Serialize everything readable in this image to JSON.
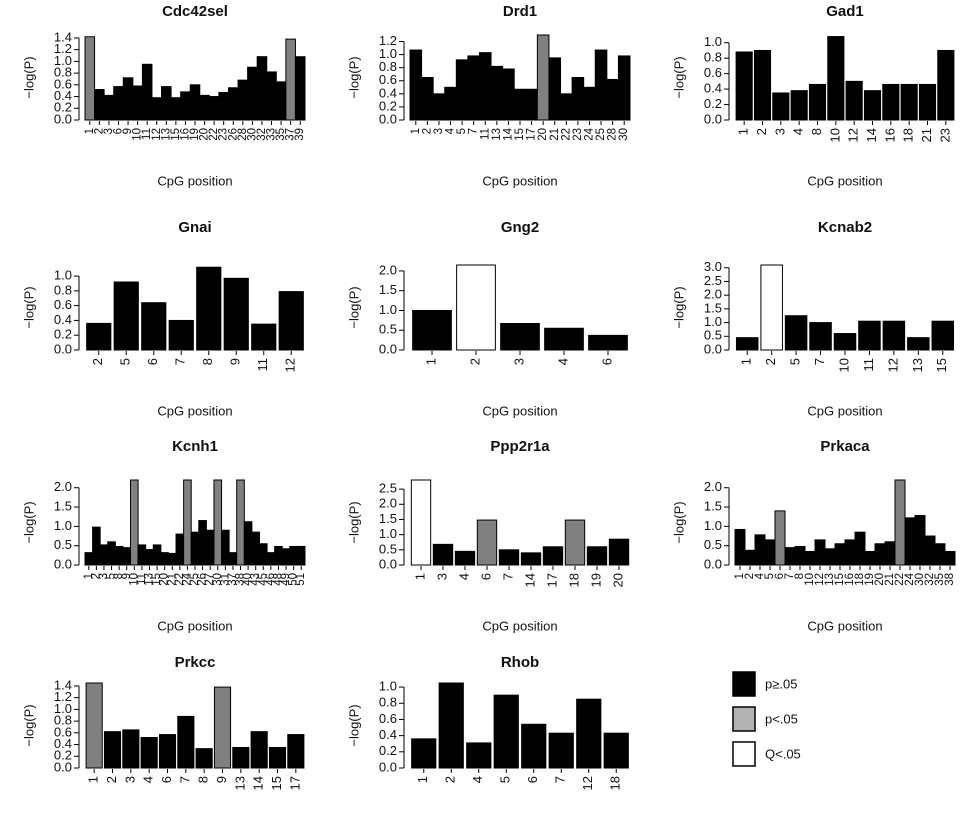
{
  "chart_data": [
    {
      "type": "bar",
      "title": "Cdc42sel",
      "y_label": "−log(P)",
      "x_label": "CpG position",
      "categories": [
        "1",
        "2",
        "3",
        "6",
        "9",
        "10",
        "11",
        "12",
        "13",
        "15",
        "16",
        "19",
        "20",
        "22",
        "23",
        "26",
        "28",
        "30",
        "32",
        "33",
        "35",
        "37",
        "39"
      ],
      "values": [
        1.42,
        0.52,
        0.42,
        0.57,
        0.72,
        0.58,
        0.95,
        0.38,
        0.57,
        0.38,
        0.48,
        0.6,
        0.42,
        0.4,
        0.47,
        0.55,
        0.68,
        0.9,
        1.08,
        0.82,
        0.65,
        1.38,
        1.08
      ],
      "colors": [
        "#808080",
        "#000000",
        "#000000",
        "#000000",
        "#000000",
        "#000000",
        "#000000",
        "#000000",
        "#000000",
        "#000000",
        "#000000",
        "#000000",
        "#000000",
        "#000000",
        "#000000",
        "#000000",
        "#000000",
        "#000000",
        "#000000",
        "#000000",
        "#000000",
        "#808080",
        "#000000"
      ],
      "ylim": [
        0,
        1.45
      ],
      "yticks": [
        {
          "value": 0,
          "label": "0.0"
        },
        0.2,
        0.4,
        0.6,
        0.8,
        {
          "value": 1,
          "label": "1.0"
        },
        1.2,
        1.4
      ]
    },
    {
      "type": "bar",
      "title": "Drd1",
      "y_label": "−log(P)",
      "x_label": "CpG position",
      "categories": [
        "1",
        "2",
        "3",
        "4",
        "5",
        "7",
        "11",
        "13",
        "14",
        "15",
        "17",
        "20",
        "21",
        "22",
        "23",
        "24",
        "25",
        "28",
        "30"
      ],
      "values": [
        1.07,
        0.65,
        0.4,
        0.5,
        0.92,
        0.98,
        1.03,
        0.82,
        0.78,
        0.47,
        0.47,
        1.3,
        0.95,
        0.4,
        0.65,
        0.5,
        1.07,
        0.62,
        0.98
      ],
      "colors": [
        "#000000",
        "#000000",
        "#000000",
        "#000000",
        "#000000",
        "#000000",
        "#000000",
        "#000000",
        "#000000",
        "#000000",
        "#000000",
        "#808080",
        "#000000",
        "#000000",
        "#000000",
        "#000000",
        "#000000",
        "#000000",
        "#000000"
      ],
      "ylim": [
        0,
        1.3
      ],
      "yticks": [
        {
          "value": 0,
          "label": "0.0"
        },
        0.2,
        0.4,
        0.6,
        0.8,
        {
          "value": 1,
          "label": "1.0"
        },
        1.2
      ]
    },
    {
      "type": "bar",
      "title": "Gad1",
      "y_label": "−log(P)",
      "x_label": "CpG position",
      "categories": [
        "1",
        "2",
        "3",
        "4",
        "8",
        "10",
        "12",
        "14",
        "16",
        "18",
        "21",
        "23"
      ],
      "values": [
        0.88,
        0.9,
        0.35,
        0.38,
        0.46,
        1.08,
        0.5,
        0.38,
        0.46,
        0.46,
        0.46,
        0.9
      ],
      "colors": [
        "#000000",
        "#000000",
        "#000000",
        "#000000",
        "#000000",
        "#000000",
        "#000000",
        "#000000",
        "#000000",
        "#000000",
        "#000000",
        "#000000"
      ],
      "ylim": [
        0,
        1.1
      ],
      "yticks": [
        {
          "value": 0,
          "label": "0.0"
        },
        0.2,
        0.4,
        0.6,
        0.8,
        {
          "value": 1,
          "label": "1.0"
        }
      ]
    },
    {
      "type": "bar",
      "title": "Gnai",
      "y_label": "−log(P)",
      "x_label": "CpG position",
      "categories": [
        "2",
        "5",
        "6",
        "7",
        "8",
        "9",
        "11",
        "12"
      ],
      "values": [
        0.36,
        0.92,
        0.64,
        0.4,
        1.12,
        0.97,
        0.35,
        0.79
      ],
      "colors": [
        "#000000",
        "#000000",
        "#000000",
        "#000000",
        "#000000",
        "#000000",
        "#000000",
        "#000000"
      ],
      "ylim": [
        0,
        1.15
      ],
      "yticks": [
        {
          "value": 0,
          "label": "0.0"
        },
        0.2,
        0.4,
        0.6,
        0.8,
        {
          "value": 1,
          "label": "1.0"
        }
      ]
    },
    {
      "type": "bar",
      "title": "Gng2",
      "y_label": "−log(P)",
      "x_label": "CpG position",
      "categories": [
        "1",
        "2",
        "3",
        "4",
        "6"
      ],
      "values": [
        1.0,
        2.15,
        0.67,
        0.55,
        0.37
      ],
      "colors": [
        "#000000",
        "#ffffff",
        "#000000",
        "#000000",
        "#000000"
      ],
      "ylim": [
        0,
        2.15
      ],
      "yticks": [
        {
          "value": 0,
          "label": "0.0"
        },
        0.5,
        {
          "value": 1,
          "label": "1.0"
        },
        1.5,
        {
          "value": 2,
          "label": "2.0"
        }
      ]
    },
    {
      "type": "bar",
      "title": "Kcnab2",
      "y_label": "−log(P)",
      "x_label": "CpG position",
      "categories": [
        "1",
        "2",
        "5",
        "7",
        "10",
        "11",
        "12",
        "13",
        "15"
      ],
      "values": [
        0.45,
        3.1,
        1.25,
        1.0,
        0.6,
        1.05,
        1.05,
        0.45,
        1.05
      ],
      "colors": [
        "#000000",
        "#ffffff",
        "#000000",
        "#000000",
        "#000000",
        "#000000",
        "#000000",
        "#000000",
        "#000000"
      ],
      "ylim": [
        0,
        3.1
      ],
      "yticks": [
        {
          "value": 0,
          "label": "0.0"
        },
        0.5,
        {
          "value": 1,
          "label": "1.0"
        },
        1.5,
        {
          "value": 2,
          "label": "2.0"
        },
        2.5,
        {
          "value": 3,
          "label": "3.0"
        }
      ]
    },
    {
      "type": "bar",
      "title": "Kcnh1",
      "y_label": "−log(P)",
      "x_label": "CpG position",
      "categories": [
        "1",
        "2",
        "3",
        "5",
        "8",
        "9",
        "10",
        "11",
        "13",
        "15",
        "20",
        "21",
        "22",
        "24",
        "25",
        "26",
        "27",
        "30",
        "31",
        "37",
        "38",
        "40",
        "43",
        "45",
        "46",
        "48",
        "49",
        "50",
        "51"
      ],
      "values": [
        0.32,
        0.98,
        0.52,
        0.6,
        0.48,
        0.45,
        2.2,
        0.52,
        0.4,
        0.52,
        0.32,
        0.3,
        0.8,
        2.2,
        0.85,
        1.15,
        0.9,
        2.2,
        0.9,
        0.32,
        2.2,
        1.12,
        0.85,
        0.55,
        0.32,
        0.48,
        0.42,
        0.48,
        0.48
      ],
      "colors": [
        "#000000",
        "#000000",
        "#000000",
        "#000000",
        "#000000",
        "#000000",
        "#808080",
        "#000000",
        "#000000",
        "#000000",
        "#000000",
        "#000000",
        "#000000",
        "#808080",
        "#000000",
        "#000000",
        "#000000",
        "#808080",
        "#000000",
        "#000000",
        "#808080",
        "#000000",
        "#000000",
        "#000000",
        "#000000",
        "#000000",
        "#000000",
        "#000000",
        "#000000"
      ],
      "ylim": [
        0,
        2.2
      ],
      "yticks": [
        {
          "value": 0,
          "label": "0.0"
        },
        0.5,
        {
          "value": 1,
          "label": "1.0"
        },
        1.5,
        {
          "value": 2,
          "label": "2.0"
        }
      ]
    },
    {
      "type": "bar",
      "title": "Ppp2r1a",
      "y_label": "−log(P)",
      "x_label": "CpG position",
      "categories": [
        "1",
        "3",
        "4",
        "6",
        "7",
        "14",
        "17",
        "18",
        "19",
        "20"
      ],
      "values": [
        2.8,
        0.68,
        0.45,
        1.48,
        0.5,
        0.4,
        0.6,
        1.48,
        0.6,
        0.85
      ],
      "colors": [
        "#ffffff",
        "#000000",
        "#000000",
        "#808080",
        "#000000",
        "#000000",
        "#000000",
        "#808080",
        "#000000",
        "#000000"
      ],
      "ylim": [
        0,
        2.8
      ],
      "yticks": [
        {
          "value": 0,
          "label": "0.0"
        },
        0.5,
        {
          "value": 1,
          "label": "1.0"
        },
        1.5,
        {
          "value": 2,
          "label": "2.0"
        },
        2.5
      ]
    },
    {
      "type": "bar",
      "title": "Prkaca",
      "y_label": "−log(P)",
      "x_label": "CpG position",
      "categories": [
        "1",
        "2",
        "4",
        "5",
        "6",
        "7",
        "8",
        "10",
        "12",
        "13",
        "15",
        "16",
        "18",
        "19",
        "20",
        "21",
        "22",
        "24",
        "30",
        "32",
        "35",
        "38"
      ],
      "values": [
        0.92,
        0.38,
        0.78,
        0.65,
        1.4,
        0.45,
        0.48,
        0.35,
        0.65,
        0.42,
        0.55,
        0.65,
        0.85,
        0.35,
        0.55,
        0.6,
        2.2,
        1.22,
        1.28,
        0.75,
        0.55,
        0.35
      ],
      "colors": [
        "#000000",
        "#000000",
        "#000000",
        "#000000",
        "#808080",
        "#000000",
        "#000000",
        "#000000",
        "#000000",
        "#000000",
        "#000000",
        "#000000",
        "#000000",
        "#000000",
        "#000000",
        "#000000",
        "#808080",
        "#000000",
        "#000000",
        "#000000",
        "#000000",
        "#000000"
      ],
      "ylim": [
        0,
        2.2
      ],
      "yticks": [
        {
          "value": 0,
          "label": "0.0"
        },
        0.5,
        {
          "value": 1,
          "label": "1.0"
        },
        1.5,
        {
          "value": 2,
          "label": "2.0"
        }
      ]
    },
    {
      "type": "bar",
      "title": "Prkcc",
      "y_label": "−log(P)",
      "x_label": "CpG position",
      "categories": [
        "1",
        "2",
        "3",
        "4",
        "6",
        "7",
        "8",
        "9",
        "13",
        "14",
        "15",
        "17"
      ],
      "values": [
        1.45,
        0.62,
        0.65,
        0.52,
        0.57,
        0.88,
        0.33,
        1.38,
        0.35,
        0.62,
        0.35,
        0.57
      ],
      "colors": [
        "#808080",
        "#000000",
        "#000000",
        "#000000",
        "#000000",
        "#000000",
        "#000000",
        "#808080",
        "#000000",
        "#000000",
        "#000000",
        "#000000"
      ],
      "ylim": [
        0,
        1.45
      ],
      "yticks": [
        {
          "value": 0,
          "label": "0.0"
        },
        0.2,
        0.4,
        0.6,
        0.8,
        {
          "value": 1,
          "label": "1.0"
        },
        1.2,
        1.4
      ]
    },
    {
      "type": "bar",
      "title": "Rhob",
      "y_label": "−log(P)",
      "x_label": "CpG position",
      "categories": [
        "1",
        "2",
        "4",
        "5",
        "6",
        "7",
        "12",
        "18"
      ],
      "values": [
        0.36,
        1.05,
        0.31,
        0.9,
        0.54,
        0.43,
        0.85,
        0.43
      ],
      "colors": [
        "#000000",
        "#000000",
        "#000000",
        "#000000",
        "#000000",
        "#000000",
        "#000000",
        "#000000"
      ],
      "ylim": [
        0,
        1.05
      ],
      "yticks": [
        {
          "value": 0,
          "label": "0.0"
        },
        0.2,
        0.4,
        0.6,
        0.8,
        {
          "value": 1,
          "label": "1.0"
        }
      ]
    }
  ],
  "legend": [
    {
      "label": "p≥.05",
      "color": "#000000"
    },
    {
      "label": "p<.05",
      "color": "#b3b3b3"
    },
    {
      "label": "Q<.05",
      "color": "#ffffff"
    }
  ]
}
